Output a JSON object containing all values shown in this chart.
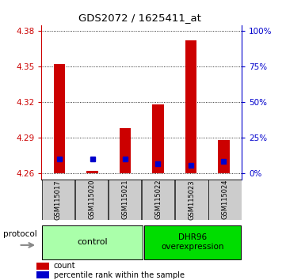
{
  "title": "GDS2072 / 1625411_at",
  "samples": [
    "GSM115017",
    "GSM115020",
    "GSM115021",
    "GSM115022",
    "GSM115023",
    "GSM115024"
  ],
  "count_values": [
    4.352,
    4.262,
    4.298,
    4.318,
    4.372,
    4.288
  ],
  "percentile_values": [
    4.272,
    4.272,
    4.272,
    4.268,
    4.267,
    4.27
  ],
  "base_value": 4.26,
  "ylim_min": 4.255,
  "ylim_max": 4.385,
  "yticks_left": [
    4.26,
    4.29,
    4.32,
    4.35,
    4.38
  ],
  "yticks_right": [
    0,
    25,
    50,
    75,
    100
  ],
  "yticks_right_positions": [
    4.26,
    4.29,
    4.32,
    4.35,
    4.38
  ],
  "bar_color": "#CC0000",
  "percentile_color": "#0000CC",
  "sample_label_bg": "#cccccc",
  "bar_width": 0.35,
  "ctrl_color": "#aaffaa",
  "overexp_color": "#00dd00",
  "ctrl_label": "control",
  "overexp_label": "DHR96\noverexpression",
  "protocol_label": "protocol"
}
